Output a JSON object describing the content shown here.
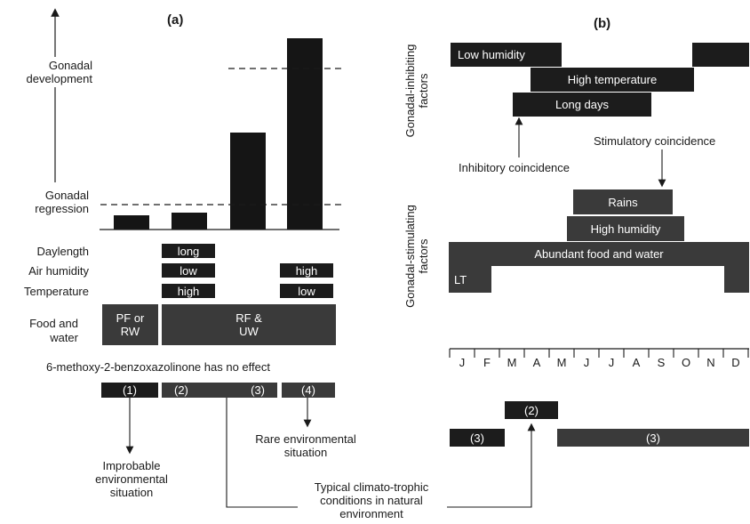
{
  "panel_a": {
    "label": "(a)",
    "y_top": "Gonadal development",
    "y_bottom": "Gonadal regression",
    "chart_data": {
      "type": "bar",
      "categories": [
        "(1)",
        "(2)",
        "(3)",
        "(4)"
      ],
      "values": [
        0.1,
        0.12,
        0.69,
        1.36
      ],
      "reference_lines": {
        "regression": 0.2,
        "development": 1.0
      },
      "ylim": [
        0,
        1.4
      ]
    },
    "row_labels": {
      "daylength": "Daylength",
      "humidity": "Air humidity",
      "temperature": "Temperature",
      "food_1": "Food and",
      "food_2": "water"
    },
    "cells": {
      "long": "long",
      "low_humidity": "low",
      "high_humidity": "high",
      "high_temp": "high",
      "low_temp": "low"
    },
    "food_blocks": {
      "left_1": "PF or",
      "left_2": "RW",
      "right_1": "RF &",
      "right_2": "UW"
    },
    "note": "6-methoxy-2-benzoxazolinone has no effect",
    "conditions": [
      "(1)",
      "(2)",
      "(3)",
      "(4)"
    ],
    "improbable_1": "Improbable",
    "improbable_2": "environmental",
    "improbable_3": "situation",
    "rare_1": "Rare environmental",
    "rare_2": "situation",
    "typical_1": "Typical climato-trophic",
    "typical_2": "conditions in natural",
    "typical_3": "environment"
  },
  "panel_b": {
    "label": "(b)",
    "axis_inhibiting_1": "Gonadal-inhibiting",
    "axis_inhibiting_2": "factors",
    "axis_stimulating_1": "Gonadal-stimulating",
    "axis_stimulating_2": "factors",
    "inhibiting": {
      "low_humidity": "Low humidity",
      "high_temperature": "High temperature",
      "long_days": "Long days"
    },
    "stimulating": {
      "rains": "Rains",
      "high_humidity": "High humidity",
      "abundant": "Abundant food and water",
      "lt": "LT"
    },
    "inhibitory_coincidence": "Inhibitory coincidence",
    "stimulatory_coincidence": "Stimulatory coincidence",
    "months": [
      "J",
      "F",
      "M",
      "A",
      "M",
      "J",
      "J",
      "A",
      "S",
      "O",
      "N",
      "D"
    ],
    "periods": [
      "(3)",
      "(2)",
      "(3)"
    ]
  }
}
